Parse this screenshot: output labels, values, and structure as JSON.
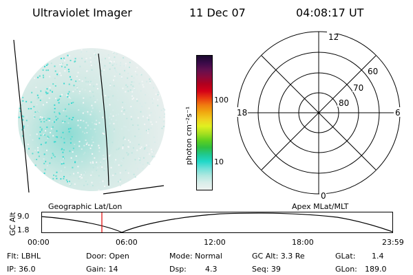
{
  "header": {
    "instrument": "Ultraviolet Imager",
    "date": "11 Dec 07",
    "time": "04:08:17 UT"
  },
  "colorbar": {
    "unit_label": "photon cm⁻²s⁻¹",
    "ticks": [
      "100",
      "10"
    ],
    "colors": [
      "#1a0a2e",
      "#3a0a48",
      "#62104f",
      "#8a0a3c",
      "#b0001e",
      "#d40018",
      "#e83a10",
      "#f07a10",
      "#f0a810",
      "#f0d020",
      "#e0f020",
      "#a8e020",
      "#60d020",
      "#30c040",
      "#20c890",
      "#20d8c8",
      "#70e0d8",
      "#b0e8e0",
      "#d8eeea",
      "#eef2f0"
    ]
  },
  "polar": {
    "lat_labels": [
      "60",
      "70",
      "80"
    ],
    "mlt_labels": [
      "12",
      "18",
      "6",
      "0"
    ]
  },
  "labels": {
    "geo": "Geographic Lat/Lon",
    "apex": "Apex MLat/MLT"
  },
  "timeline": {
    "ylabel": "GC Alt",
    "y_ticks": [
      "9.0",
      "1.8"
    ],
    "x_ticks": [
      "00:00",
      "06:00",
      "12:00",
      "18:00",
      "23:59"
    ],
    "current_hour": 4.14
  },
  "info": {
    "flt": "Flt: LBHL",
    "door": "Door: Open",
    "mode": "Mode: Normal",
    "gc_alt": "GC Alt: 3.3 Re",
    "glat_label": "GLat:",
    "glat_value": "1.4",
    "ip": "IP: 36.0",
    "gain": "Gain: 14",
    "dsp_label": "Dsp:",
    "dsp_value": "4.3",
    "seq": "Seq: 39",
    "glon_label": "GLon:",
    "glon_value": "189.0"
  }
}
